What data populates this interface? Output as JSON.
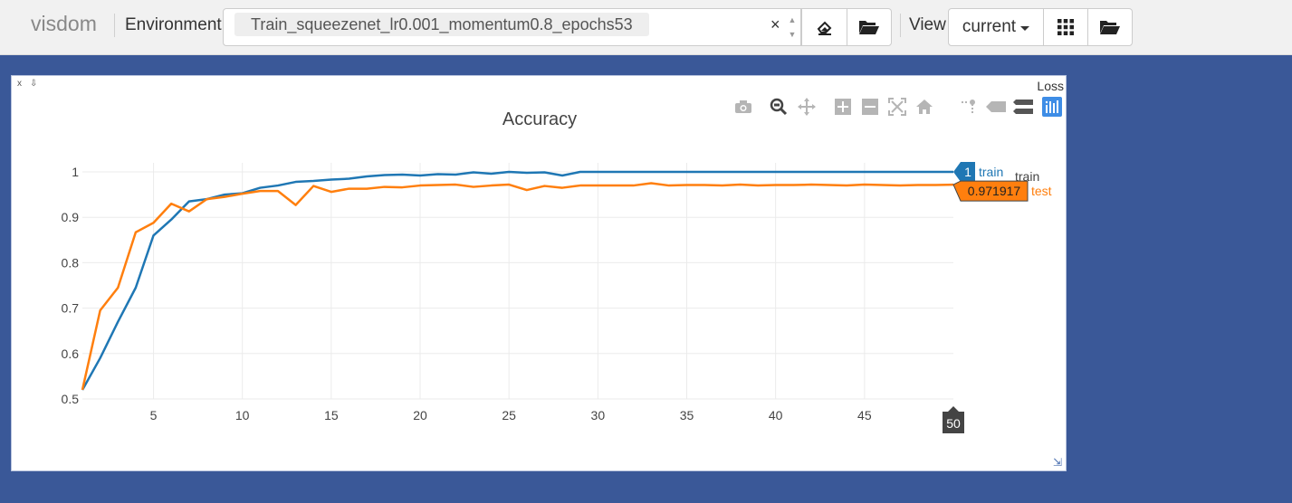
{
  "topbar": {
    "brand": "visdom",
    "environment_label": "Environment",
    "environment_value": "Train_squeezenet_lr0.001_momentum0.8_epochs53",
    "clear_glyph": "×",
    "spin_up": "▲",
    "spin_down": "▼",
    "view_label": "View",
    "view_value": "current",
    "icons": [
      "eraser-icon",
      "folder-open-icon",
      "grid-icon",
      "folder-open-icon"
    ]
  },
  "pane": {
    "close_glyph": "x",
    "pin_glyph": "⇩",
    "title": "Loss",
    "modebar_icons": [
      "camera-icon",
      "zoom-icon",
      "pan-icon",
      "zoom-in-icon",
      "zoom-out-icon",
      "autoscale-icon",
      "home-icon",
      "spike-lines-icon",
      "compare-hover-icon",
      "closest-hover-icon",
      "plotly-logo-icon"
    ],
    "resize_glyph": "⇲"
  },
  "chart_data": {
    "type": "line",
    "title": "Accuracy",
    "xlabel": "",
    "ylabel": "",
    "xlim": [
      1,
      50
    ],
    "ylim": [
      0.5,
      1.0
    ],
    "x_ticks": [
      5,
      10,
      15,
      20,
      25,
      30,
      35,
      40,
      45
    ],
    "y_ticks": [
      0.5,
      0.6,
      0.7,
      0.8,
      0.9,
      1.0
    ],
    "y_tick_labels": [
      "0.5",
      "0.6",
      "0.7",
      "0.8",
      "0.9",
      "1"
    ],
    "grid": true,
    "legend": "right",
    "legend_entries": [
      "train",
      "test"
    ],
    "series": [
      {
        "name": "train",
        "color": "#1f77b4",
        "values": [
          0.52,
          0.59,
          0.67,
          0.745,
          0.86,
          0.895,
          0.935,
          0.94,
          0.95,
          0.953,
          0.965,
          0.97,
          0.978,
          0.98,
          0.983,
          0.985,
          0.99,
          0.993,
          0.994,
          0.992,
          0.995,
          0.994,
          0.999,
          0.996,
          1.0,
          0.998,
          0.999,
          0.992,
          1.0,
          1.0,
          1.0,
          1.0,
          1.0,
          1.0,
          1.0,
          1.0,
          1.0,
          1.0,
          1.0,
          1.0,
          1.0,
          1.0,
          1.0,
          1.0,
          1.0,
          1.0,
          1.0,
          1.0,
          1.0,
          1.0
        ]
      },
      {
        "name": "test",
        "color": "#ff7f0e",
        "values": [
          0.52,
          0.695,
          0.745,
          0.867,
          0.888,
          0.93,
          0.913,
          0.94,
          0.945,
          0.952,
          0.958,
          0.958,
          0.927,
          0.969,
          0.956,
          0.963,
          0.963,
          0.967,
          0.966,
          0.97,
          0.971,
          0.972,
          0.967,
          0.97,
          0.972,
          0.96,
          0.969,
          0.965,
          0.97,
          0.97,
          0.97,
          0.97,
          0.975,
          0.97,
          0.971,
          0.971,
          0.97,
          0.972,
          0.97,
          0.971,
          0.971,
          0.972,
          0.971,
          0.97,
          0.972,
          0.971,
          0.97,
          0.971,
          0.971,
          0.971917
        ]
      }
    ],
    "hover": {
      "x_label": "50",
      "train_label": "1",
      "test_label": "0.971917"
    }
  }
}
